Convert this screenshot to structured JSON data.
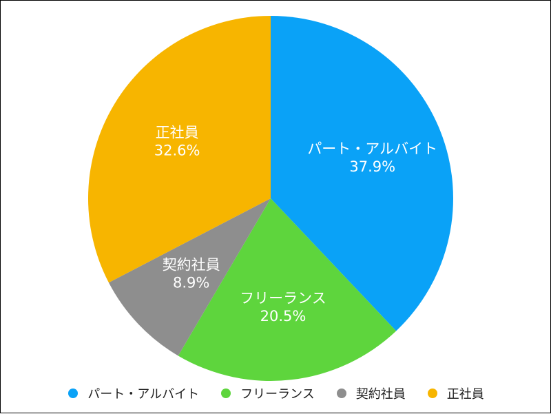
{
  "chart_data": {
    "type": "pie",
    "categories": [
      "パート・アルバイト",
      "フリーランス",
      "契約社員",
      "正社員"
    ],
    "values": [
      37.9,
      20.5,
      8.9,
      32.6
    ],
    "unit": "%",
    "colors": [
      "#0aa2f7",
      "#5ed53d",
      "#8e8e8e",
      "#f7b500"
    ],
    "start_angle": "12 o'clock",
    "direction": "clockwise",
    "legend_position": "bottom"
  },
  "slice_labels": [
    {
      "name": "パート・アルバイト",
      "value": "37.9%"
    },
    {
      "name": "フリーランス",
      "value": "20.5%"
    },
    {
      "name": "契約社員",
      "value": "8.9%"
    },
    {
      "name": "正社員",
      "value": "32.6%"
    }
  ],
  "legend": {
    "items": [
      {
        "label": "パート・アルバイト",
        "color": "#0aa2f7"
      },
      {
        "label": "フリーランス",
        "color": "#5ed53d"
      },
      {
        "label": "契約社員",
        "color": "#8e8e8e"
      },
      {
        "label": "正社員",
        "color": "#f7b500"
      }
    ]
  }
}
